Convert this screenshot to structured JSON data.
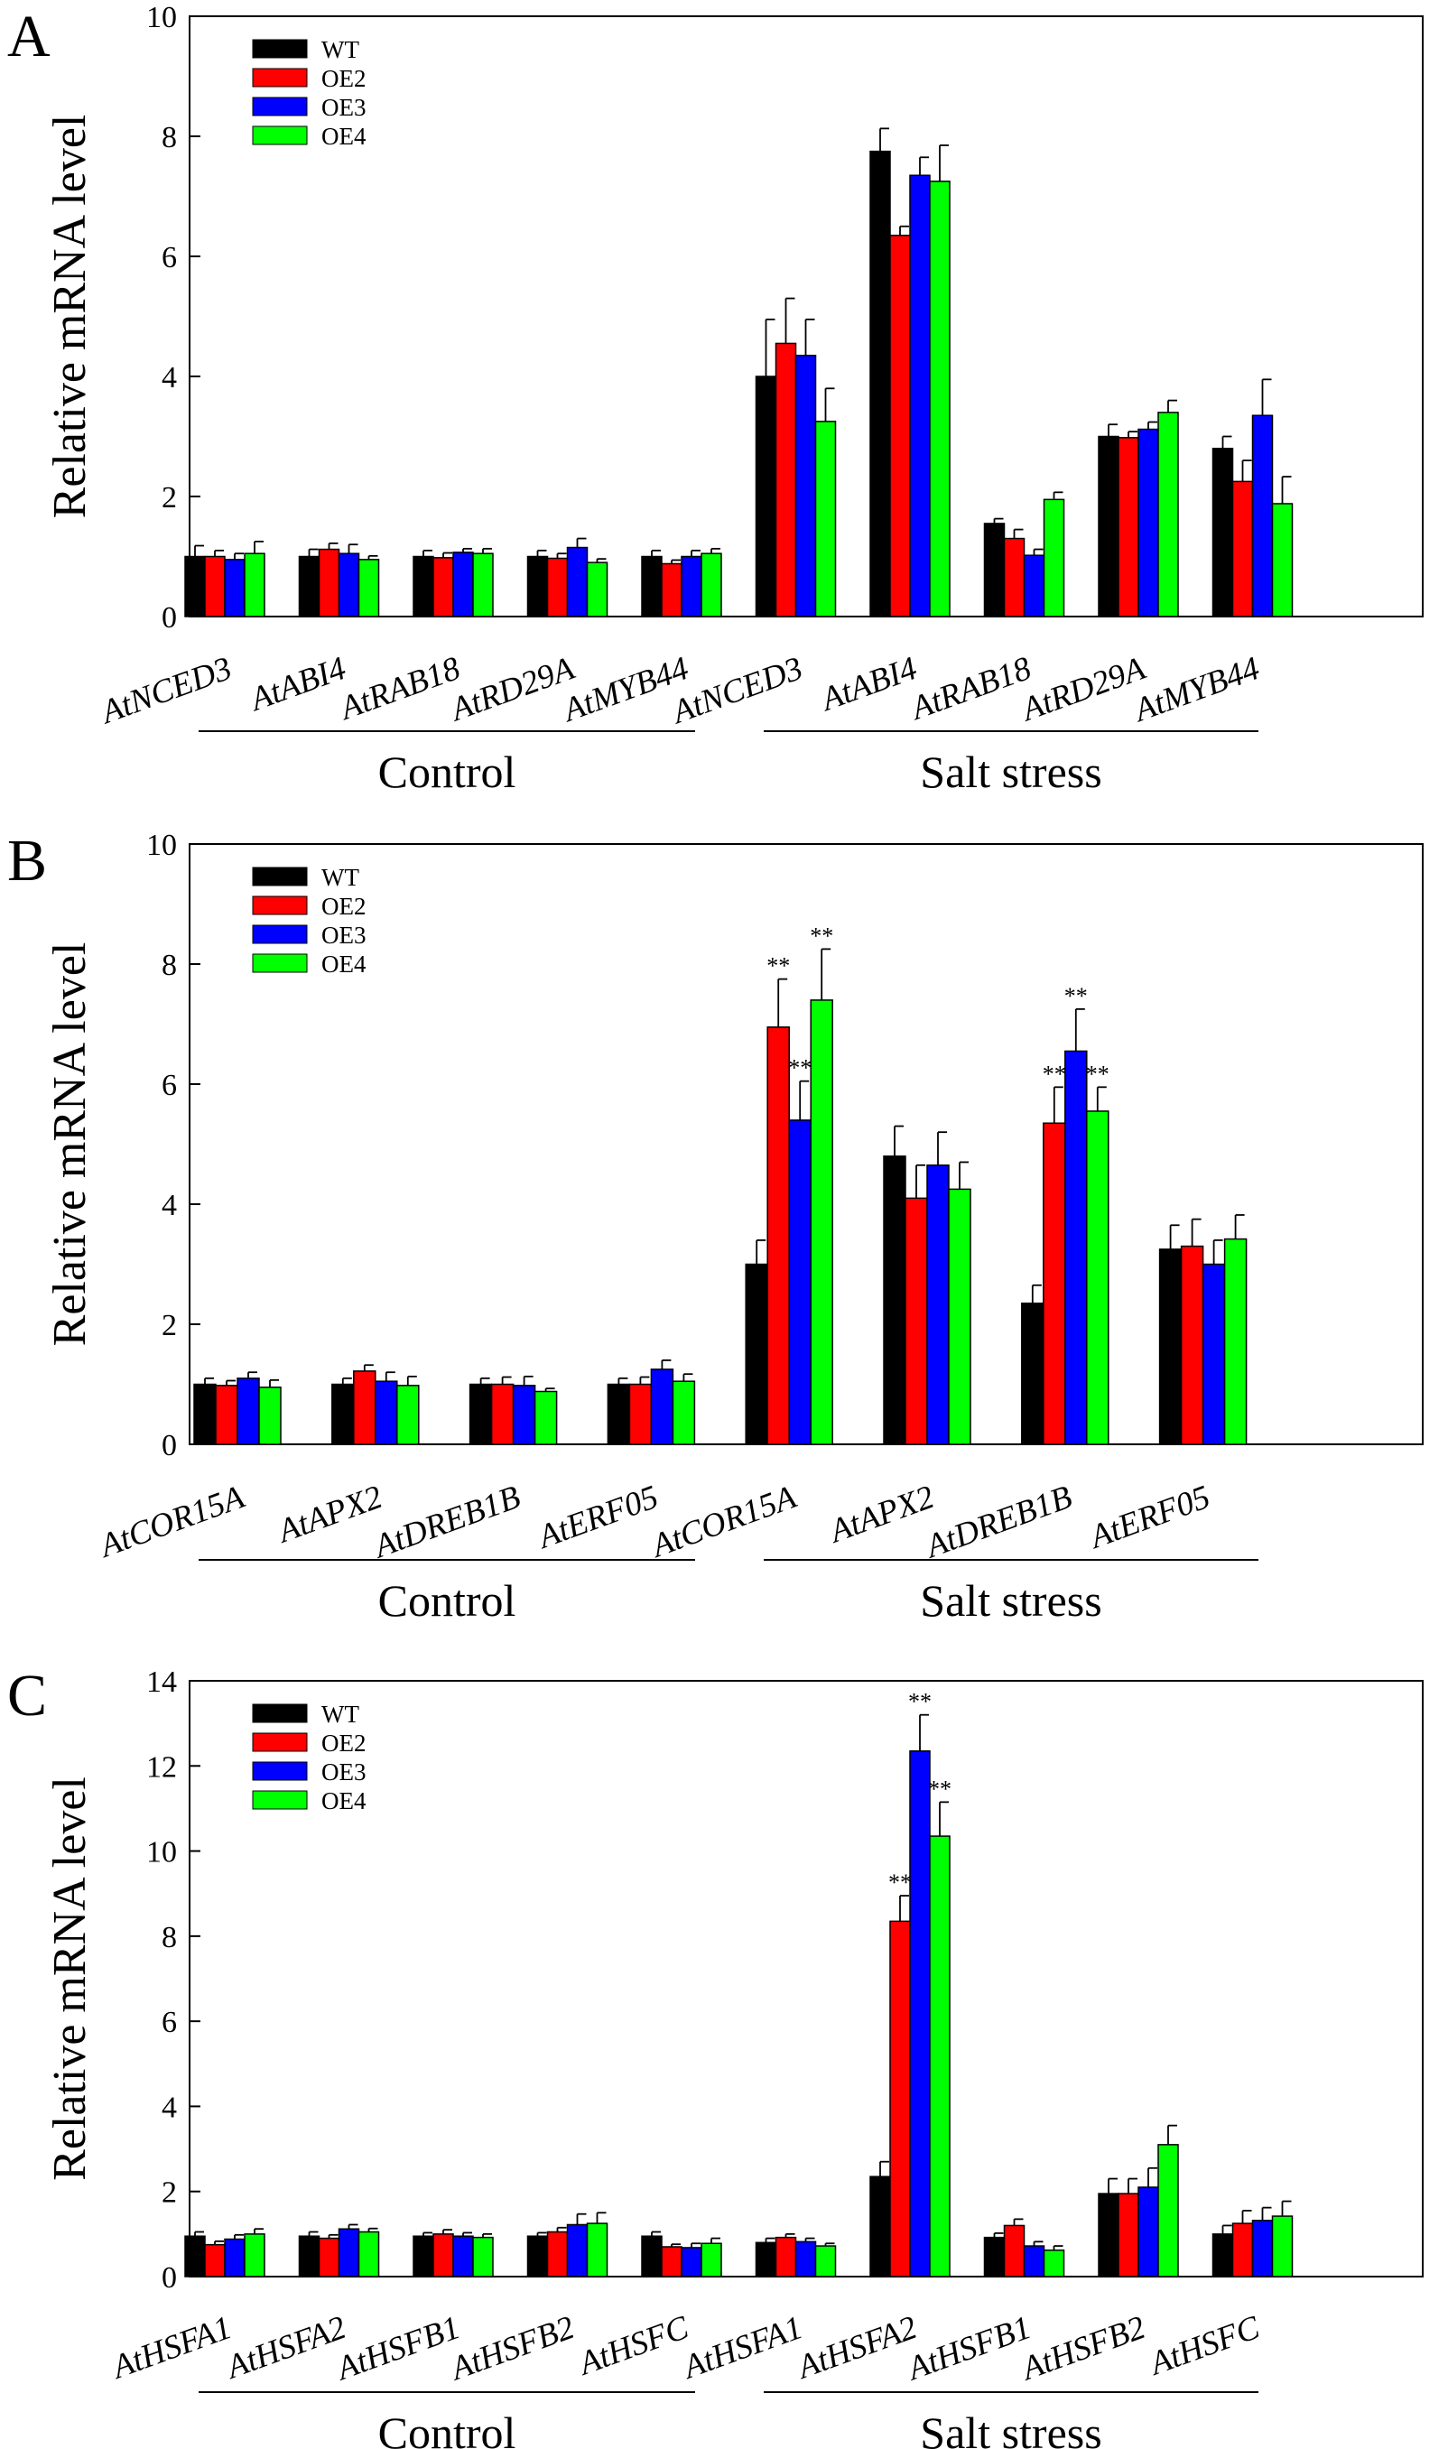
{
  "figure": {
    "series_names": [
      "WT",
      "OE2",
      "OE3",
      "OE4"
    ],
    "series_colors": [
      "#000000",
      "#ff0000",
      "#0000ff",
      "#00ff00"
    ],
    "group_labels": [
      "Control",
      "Salt stress"
    ],
    "ylabel": "Relative mRNA level"
  },
  "chart_data": [
    {
      "type": "bar",
      "panel": "A",
      "title": "",
      "xlabel": "",
      "ylabel": "Relative mRNA level",
      "ylim": [
        0,
        10
      ],
      "yticks": [
        0,
        2,
        4,
        6,
        8,
        10
      ],
      "legend": "top-left",
      "groups": [
        {
          "label": "Control",
          "categories": [
            0,
            1,
            2,
            3,
            4
          ]
        },
        {
          "label": "Salt stress",
          "categories": [
            5,
            6,
            7,
            8,
            9
          ]
        }
      ],
      "categories": [
        "AtNCED3",
        "AtABI4",
        "AtRAB18",
        "AtRD29A",
        "AtMYB44",
        "AtNCED3",
        "AtABI4",
        "AtRAB18",
        "AtRD29A",
        "AtMYB44"
      ],
      "series": [
        {
          "name": "WT",
          "values": [
            1.0,
            1.0,
            1.0,
            1.0,
            1.0,
            4.0,
            7.75,
            1.55,
            3.0,
            2.8
          ],
          "errors": [
            0.18,
            0.12,
            0.1,
            0.1,
            0.1,
            0.95,
            0.38,
            0.08,
            0.2,
            0.2
          ]
        },
        {
          "name": "OE2",
          "values": [
            1.0,
            1.12,
            0.98,
            0.97,
            0.88,
            4.55,
            6.35,
            1.3,
            2.98,
            2.25
          ],
          "errors": [
            0.1,
            0.1,
            0.08,
            0.08,
            0.06,
            0.75,
            0.15,
            0.15,
            0.1,
            0.35
          ]
        },
        {
          "name": "OE3",
          "values": [
            0.95,
            1.05,
            1.07,
            1.15,
            1.0,
            4.35,
            7.35,
            1.02,
            3.12,
            3.35
          ],
          "errors": [
            0.1,
            0.15,
            0.06,
            0.15,
            0.1,
            0.6,
            0.3,
            0.1,
            0.12,
            0.6
          ]
        },
        {
          "name": "OE4",
          "values": [
            1.05,
            0.95,
            1.05,
            0.9,
            1.05,
            3.25,
            7.25,
            1.95,
            3.4,
            1.88
          ],
          "errors": [
            0.2,
            0.06,
            0.08,
            0.06,
            0.08,
            0.55,
            0.6,
            0.12,
            0.2,
            0.45
          ]
        }
      ],
      "annotations": []
    },
    {
      "type": "bar",
      "panel": "B",
      "title": "",
      "xlabel": "",
      "ylabel": "Relative mRNA level",
      "ylim": [
        0,
        10
      ],
      "yticks": [
        0,
        2,
        4,
        6,
        8,
        10
      ],
      "legend": "top-left",
      "groups": [
        {
          "label": "Control",
          "categories": [
            0,
            1,
            2,
            3
          ]
        },
        {
          "label": "Salt stress",
          "categories": [
            4,
            5,
            6,
            7
          ]
        }
      ],
      "categories": [
        "AtCOR15A",
        "AtAPX2",
        "AtDREB1B",
        "AtERF05",
        "AtCOR15A",
        "AtAPX2",
        "AtDREB1B",
        "AtERF05"
      ],
      "series": [
        {
          "name": "WT",
          "values": [
            1.0,
            1.0,
            1.0,
            1.0,
            3.0,
            4.8,
            2.35,
            3.25
          ],
          "errors": [
            0.1,
            0.1,
            0.1,
            0.1,
            0.4,
            0.5,
            0.3,
            0.4
          ]
        },
        {
          "name": "OE2",
          "values": [
            0.98,
            1.22,
            1.0,
            1.0,
            6.95,
            4.1,
            5.35,
            3.3
          ],
          "errors": [
            0.08,
            0.1,
            0.12,
            0.12,
            0.8,
            0.55,
            0.6,
            0.45
          ]
        },
        {
          "name": "OE3",
          "values": [
            1.1,
            1.05,
            0.98,
            1.25,
            5.4,
            4.65,
            6.55,
            3.0
          ],
          "errors": [
            0.1,
            0.15,
            0.15,
            0.15,
            0.65,
            0.55,
            0.7,
            0.4
          ]
        },
        {
          "name": "OE4",
          "values": [
            0.95,
            0.98,
            0.88,
            1.05,
            7.4,
            4.25,
            5.55,
            3.42
          ],
          "errors": [
            0.12,
            0.15,
            0.05,
            0.12,
            0.85,
            0.45,
            0.4,
            0.4
          ]
        }
      ],
      "annotations": [
        {
          "category": 4,
          "series": "OE2",
          "text": "**"
        },
        {
          "category": 4,
          "series": "OE3",
          "text": "**"
        },
        {
          "category": 4,
          "series": "OE4",
          "text": "**"
        },
        {
          "category": 6,
          "series": "OE2",
          "text": "**"
        },
        {
          "category": 6,
          "series": "OE3",
          "text": "**"
        },
        {
          "category": 6,
          "series": "OE4",
          "text": "**"
        }
      ]
    },
    {
      "type": "bar",
      "panel": "C",
      "title": "",
      "xlabel": "",
      "ylabel": "Relative mRNA level",
      "ylim": [
        0,
        14
      ],
      "yticks": [
        0,
        2,
        4,
        6,
        8,
        10,
        12,
        14
      ],
      "legend": "top-left",
      "groups": [
        {
          "label": "Control",
          "categories": [
            0,
            1,
            2,
            3,
            4
          ]
        },
        {
          "label": "Salt stress",
          "categories": [
            5,
            6,
            7,
            8,
            9
          ]
        }
      ],
      "categories": [
        "AtHSFA1",
        "AtHSFA2",
        "AtHSFB1",
        "AtHSFB2",
        "AtHSFC",
        "AtHSFA1",
        "AtHSFA2",
        "AtHSFB1",
        "AtHSFB2",
        "AtHSFC"
      ],
      "series": [
        {
          "name": "WT",
          "values": [
            0.95,
            0.95,
            0.95,
            0.95,
            0.95,
            0.8,
            2.35,
            0.92,
            1.95,
            1.0
          ],
          "errors": [
            0.1,
            0.1,
            0.08,
            0.08,
            0.1,
            0.1,
            0.35,
            0.1,
            0.35,
            0.2
          ]
        },
        {
          "name": "OE2",
          "values": [
            0.75,
            0.9,
            1.0,
            1.05,
            0.7,
            0.92,
            8.35,
            1.2,
            1.95,
            1.25
          ],
          "errors": [
            0.08,
            0.08,
            0.1,
            0.1,
            0.06,
            0.08,
            0.6,
            0.15,
            0.35,
            0.3
          ]
        },
        {
          "name": "OE3",
          "values": [
            0.88,
            1.12,
            0.95,
            1.22,
            0.68,
            0.82,
            12.35,
            0.72,
            2.1,
            1.32
          ],
          "errors": [
            0.1,
            0.1,
            0.08,
            0.25,
            0.1,
            0.08,
            0.85,
            0.1,
            0.45,
            0.3
          ]
        },
        {
          "name": "OE4",
          "values": [
            1.0,
            1.05,
            0.92,
            1.25,
            0.78,
            0.72,
            10.35,
            0.62,
            3.1,
            1.42
          ],
          "errors": [
            0.12,
            0.08,
            0.08,
            0.25,
            0.12,
            0.06,
            0.8,
            0.1,
            0.45,
            0.35
          ]
        }
      ],
      "annotations": [
        {
          "category": 6,
          "series": "OE2",
          "text": "**"
        },
        {
          "category": 6,
          "series": "OE3",
          "text": "**"
        },
        {
          "category": 6,
          "series": "OE4",
          "text": "**"
        }
      ]
    }
  ]
}
